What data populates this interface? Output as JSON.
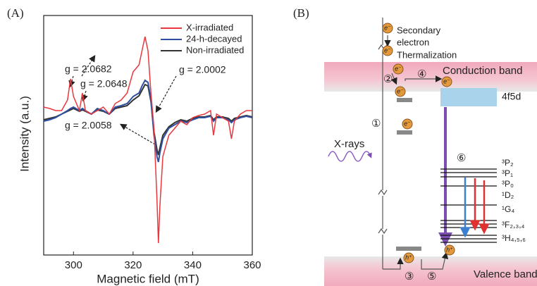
{
  "chart_data": {
    "type": "line",
    "panel_label": "(A)",
    "x_label": "Magnetic  field (mT)",
    "y_label": "Intensity (a.u.)",
    "x": [
      290,
      292,
      294,
      296,
      298,
      299,
      300,
      302,
      303,
      304,
      306,
      308,
      310,
      312,
      314,
      316,
      318,
      320,
      322,
      323,
      324,
      325,
      326,
      327,
      328,
      328.5,
      329,
      330,
      332,
      334,
      336,
      338,
      340,
      342,
      344,
      346,
      347,
      348,
      350,
      352,
      353,
      354,
      356,
      358,
      360
    ],
    "series": [
      {
        "name": "X-irradiated",
        "color": "#e8383d",
        "values": [
          10,
          8,
          5,
          5,
          20,
          50,
          25,
          5,
          30,
          5,
          0,
          5,
          10,
          0,
          15,
          20,
          30,
          60,
          70,
          90,
          110,
          90,
          30,
          -20,
          -120,
          -183,
          -130,
          -60,
          -30,
          -20,
          -10,
          -15,
          -5,
          -2,
          0,
          5,
          -30,
          0,
          -5,
          -10,
          -35,
          -10,
          0,
          5,
          5
        ]
      },
      {
        "name": "24-h-decayed",
        "color": "#2f4fa0",
        "values": [
          -10,
          -8,
          -5,
          0,
          5,
          8,
          10,
          5,
          8,
          5,
          0,
          8,
          5,
          0,
          10,
          12,
          15,
          25,
          30,
          40,
          48,
          45,
          20,
          -30,
          -60,
          -68,
          -55,
          -35,
          -20,
          -15,
          -10,
          -12,
          -8,
          -5,
          -5,
          -3,
          -10,
          -5,
          -5,
          -8,
          -12,
          -8,
          -5,
          -3,
          -5
        ]
      },
      {
        "name": "Non-irradiated",
        "color": "#333333",
        "values": [
          -8,
          -6,
          -4,
          0,
          4,
          6,
          8,
          4,
          6,
          4,
          0,
          6,
          4,
          0,
          8,
          10,
          12,
          20,
          26,
          34,
          42,
          40,
          18,
          -25,
          -50,
          -58,
          -48,
          -30,
          -18,
          -12,
          -8,
          -10,
          -6,
          -4,
          -4,
          -2,
          -8,
          -4,
          -4,
          -6,
          -10,
          -6,
          -4,
          -2,
          -4
        ]
      }
    ],
    "xlim": [
      290,
      360
    ],
    "xticks": [
      300,
      320,
      340,
      360
    ],
    "ylim": [
      -200,
      140
    ],
    "legend": "upper right",
    "annotations": [
      "g = 2.0682",
      "g = 2.0648",
      "g = 2.0002",
      "g = 2.0058"
    ]
  },
  "diagram": {
    "label": "(B)",
    "secondary_electron": [
      "Secondary",
      "electron"
    ],
    "thermalization": "Thermalization",
    "conduction_band": "Conduction band",
    "valence_band": "Valence band",
    "level_4f5d": "4f5d",
    "xrays": "X-rays",
    "steps": [
      "①",
      "②",
      "③",
      "④",
      "⑤",
      "⑥"
    ],
    "electron": "e⁻",
    "hole": "h⁺",
    "levels": [
      "³P₂",
      "³P₁",
      "³P₀",
      "¹D₂",
      "¹G₄",
      "³F₂,₃,₄",
      "³H₄,₅,₆"
    ]
  }
}
